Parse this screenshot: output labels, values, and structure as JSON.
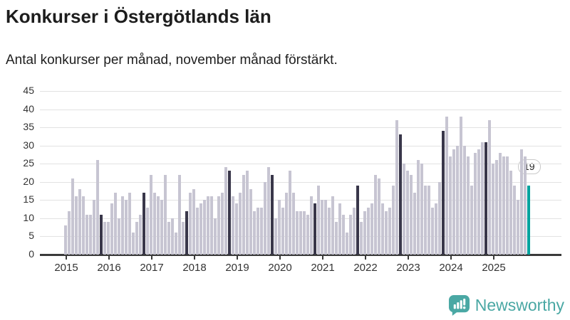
{
  "title": "Konkurser i Östergötlands län",
  "subtitle": "Antal konkurser per månad, november månad förstärkt.",
  "annotation": {
    "label": "19"
  },
  "logo": {
    "name": "Newsworthy"
  },
  "colors": {
    "bar": "#c7c5d2",
    "bar_november": "#39374a",
    "bar_current": "#00a39e",
    "grid": "#e2e2e2",
    "axis": "#3a3a3a",
    "brand": "#4aa8a4"
  },
  "chart_data": {
    "type": "bar",
    "title": "Konkurser i Östergötlands län",
    "subtitle": "Antal konkurser per månad, november månad förstärkt.",
    "ylabel": "",
    "xlabel": "",
    "unit": "antal konkurser per månad",
    "ylim": [
      0,
      45
    ],
    "yticks": [
      0,
      5,
      10,
      15,
      20,
      25,
      30,
      35,
      40,
      45
    ],
    "grid": true,
    "legend": "none",
    "x_tick_labels": [
      "2015",
      "2016",
      "2017",
      "2018",
      "2019",
      "2020",
      "2021",
      "2022",
      "2023",
      "2024",
      "2025"
    ],
    "highlighted_month": "november",
    "last_bar": {
      "year": 2025,
      "month": "november",
      "value": 19,
      "style": "teal"
    },
    "series": [
      {
        "year": 2015,
        "values": [
          8,
          12,
          21,
          16,
          18,
          16,
          11,
          11,
          15,
          26,
          11,
          9
        ]
      },
      {
        "year": 2016,
        "values": [
          9,
          14,
          17,
          10,
          16,
          15,
          17,
          6,
          9,
          11,
          17,
          13
        ]
      },
      {
        "year": 2017,
        "values": [
          22,
          17,
          16,
          15,
          22,
          9,
          10,
          6,
          22,
          9,
          12,
          17
        ]
      },
      {
        "year": 2018,
        "values": [
          18,
          13,
          14,
          15,
          16,
          16,
          10,
          16,
          17,
          24,
          23,
          16
        ]
      },
      {
        "year": 2019,
        "values": [
          14,
          17,
          22,
          23,
          18,
          12,
          13,
          13,
          20,
          24,
          22,
          10
        ]
      },
      {
        "year": 2020,
        "values": [
          15,
          13,
          17,
          23,
          17,
          12,
          12,
          12,
          11,
          16,
          14,
          19
        ]
      },
      {
        "year": 2021,
        "values": [
          15,
          15,
          13,
          16,
          9,
          14,
          11,
          6,
          11,
          13,
          19,
          9
        ]
      },
      {
        "year": 2022,
        "values": [
          12,
          13,
          14,
          22,
          21,
          14,
          12,
          13,
          19,
          37,
          33,
          25
        ]
      },
      {
        "year": 2023,
        "values": [
          23,
          22,
          17,
          26,
          25,
          19,
          19,
          13,
          14,
          20,
          34,
          38
        ]
      },
      {
        "year": 2024,
        "values": [
          27,
          29,
          30,
          38,
          30,
          27,
          19,
          28,
          29,
          31,
          31,
          37
        ]
      },
      {
        "year": 2025,
        "values": [
          25,
          26,
          28,
          27,
          27,
          23,
          19,
          15,
          29,
          27,
          19
        ]
      }
    ]
  }
}
